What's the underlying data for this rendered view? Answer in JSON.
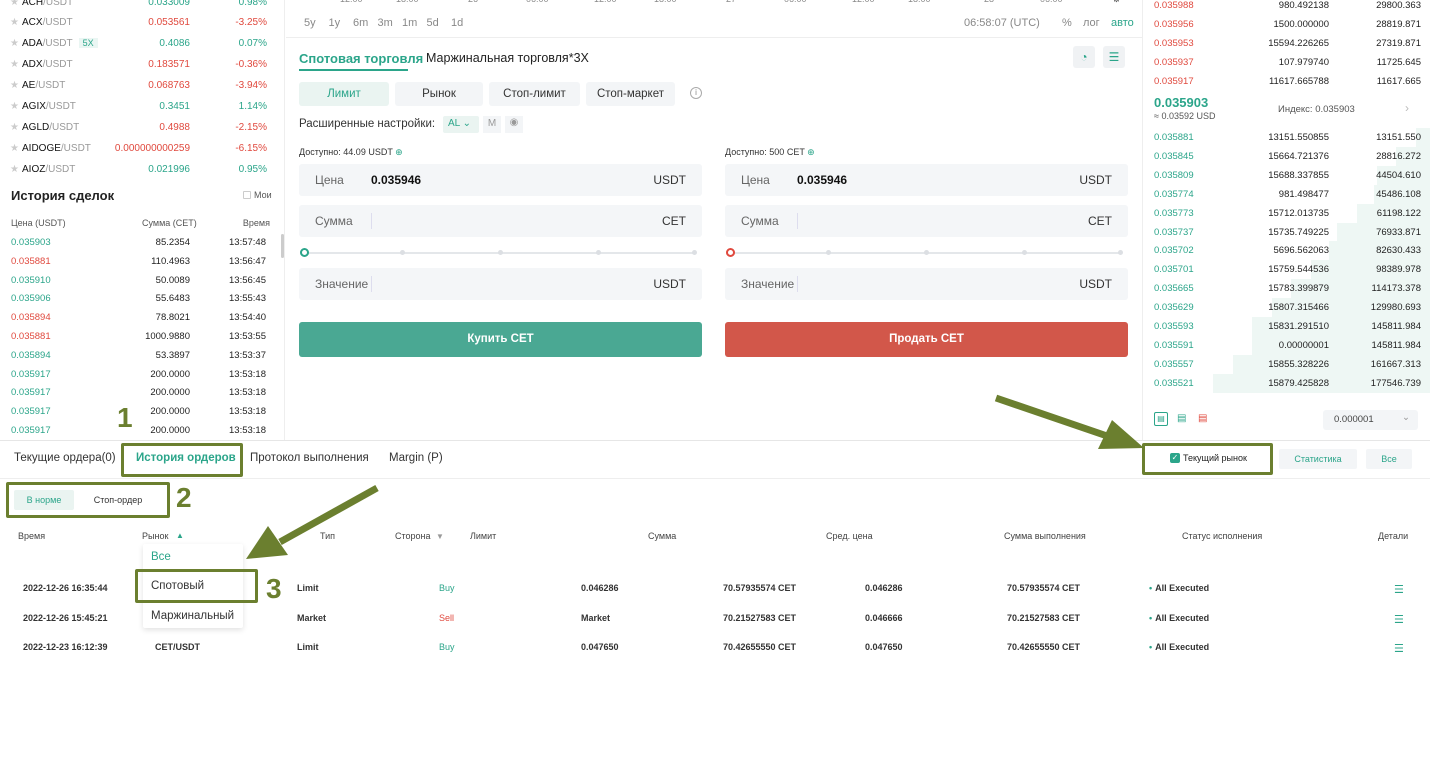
{
  "markets": [
    {
      "sym": "ACH",
      "quote": "/USDT",
      "price": "0.033009",
      "change": "0.98%",
      "dir": "up"
    },
    {
      "sym": "ACX",
      "quote": "/USDT",
      "price": "0.053561",
      "change": "-3.25%",
      "dir": "down"
    },
    {
      "sym": "ADA",
      "quote": "/USDT",
      "lev": "5X",
      "price": "0.4086",
      "change": "0.07%",
      "dir": "up"
    },
    {
      "sym": "ADX",
      "quote": "/USDT",
      "price": "0.183571",
      "change": "-0.36%",
      "dir": "down"
    },
    {
      "sym": "AE",
      "quote": "/USDT",
      "price": "0.068763",
      "change": "-3.94%",
      "dir": "down"
    },
    {
      "sym": "AGIX",
      "quote": "/USDT",
      "price": "0.3451",
      "change": "1.14%",
      "dir": "up"
    },
    {
      "sym": "AGLD",
      "quote": "/USDT",
      "price": "0.4988",
      "change": "-2.15%",
      "dir": "down"
    },
    {
      "sym": "AIDOGE",
      "quote": "/USDT",
      "price": "0.000000000259",
      "change": "-6.15%",
      "dir": "down"
    },
    {
      "sym": "AIOZ",
      "quote": "/USDT",
      "price": "0.021996",
      "change": "0.95%",
      "dir": "up"
    }
  ],
  "trade_history": {
    "title": "История сделок",
    "mine_label": "Мои",
    "headers": {
      "price": "Цена (USDT)",
      "amount": "Сумма (CET)",
      "time": "Время"
    },
    "rows": [
      {
        "price": "0.035903",
        "amount": "85.2354",
        "time": "13:57:48",
        "dir": "up"
      },
      {
        "price": "0.035881",
        "amount": "110.4963",
        "time": "13:56:47",
        "dir": "down"
      },
      {
        "price": "0.035910",
        "amount": "50.0089",
        "time": "13:56:45",
        "dir": "up"
      },
      {
        "price": "0.035906",
        "amount": "55.6483",
        "time": "13:55:43",
        "dir": "up"
      },
      {
        "price": "0.035894",
        "amount": "78.8021",
        "time": "13:54:40",
        "dir": "down"
      },
      {
        "price": "0.035881",
        "amount": "1000.9880",
        "time": "13:53:55",
        "dir": "down"
      },
      {
        "price": "0.035894",
        "amount": "53.3897",
        "time": "13:53:37",
        "dir": "up"
      },
      {
        "price": "0.035917",
        "amount": "200.0000",
        "time": "13:53:18",
        "dir": "up"
      },
      {
        "price": "0.035917",
        "amount": "200.0000",
        "time": "13:53:18",
        "dir": "up"
      },
      {
        "price": "0.035917",
        "amount": "200.0000",
        "time": "13:53:18",
        "dir": "up"
      },
      {
        "price": "0.035917",
        "amount": "200.0000",
        "time": "13:53:18",
        "dir": "up"
      }
    ]
  },
  "chart_strip": {
    "axis_labels": [
      "12:00",
      "18:00",
      "26",
      "06:00",
      "12:00",
      "18:00",
      "27",
      "06:00",
      "12:00",
      "18:00",
      "28",
      "06:00"
    ],
    "ranges": [
      "5y",
      "1y",
      "6m",
      "3m",
      "1m",
      "5d",
      "1d"
    ],
    "clock": "06:58:07 (UTC)",
    "pct": "%",
    "log": "лог",
    "auto": "авто"
  },
  "order_form": {
    "tab_spot": "Спотовая торговля",
    "tab_margin": "Маржинальная торговля*3X",
    "types": [
      "Лимит",
      "Рынок",
      "Стоп-лимит",
      "Стоп-маркет"
    ],
    "advanced_label": "Расширенные настройки:",
    "adv_al": "AL",
    "adv_m": "M",
    "buy": {
      "avail_label": "Доступно:",
      "avail_value": "44.09 USDT",
      "price_label": "Цена",
      "price_value": "0.035946",
      "price_unit": "USDT",
      "amount_label": "Сумма",
      "amount_unit": "CET",
      "value_label": "Значение",
      "value_unit": "USDT",
      "button": "Купить CET"
    },
    "sell": {
      "avail_label": "Доступно:",
      "avail_value": "500 CET",
      "price_label": "Цена",
      "price_value": "0.035946",
      "price_unit": "USDT",
      "amount_label": "Сумма",
      "amount_unit": "CET",
      "value_label": "Значение",
      "value_unit": "USDT",
      "button": "Продать CET"
    }
  },
  "orderbook": {
    "asks": [
      {
        "price": "0.035988",
        "amount": "980.492138",
        "total": "29800.363"
      },
      {
        "price": "0.035956",
        "amount": "1500.000000",
        "total": "28819.871"
      },
      {
        "price": "0.035953",
        "amount": "15594.226265",
        "total": "27319.871"
      },
      {
        "price": "0.035937",
        "amount": "107.979740",
        "total": "11725.645"
      },
      {
        "price": "0.035917",
        "amount": "11617.665788",
        "total": "11617.665"
      }
    ],
    "last_price": "0.035903",
    "last_usd": "≈ 0.03592 USD",
    "index": "Индекс: 0.035903",
    "bids": [
      {
        "price": "0.035881",
        "amount": "13151.550855",
        "total": "13151.550",
        "depth": 0.07
      },
      {
        "price": "0.035845",
        "amount": "15664.721376",
        "total": "28816.272",
        "depth": 0.16
      },
      {
        "price": "0.035809",
        "amount": "15688.337855",
        "total": "44504.610",
        "depth": 0.25
      },
      {
        "price": "0.035774",
        "amount": "981.498477",
        "total": "45486.108",
        "depth": 0.26
      },
      {
        "price": "0.035773",
        "amount": "15712.013735",
        "total": "61198.122",
        "depth": 0.34
      },
      {
        "price": "0.035737",
        "amount": "15735.749225",
        "total": "76933.871",
        "depth": 0.43
      },
      {
        "price": "0.035702",
        "amount": "5696.562063",
        "total": "82630.433",
        "depth": 0.47
      },
      {
        "price": "0.035701",
        "amount": "15759.544536",
        "total": "98389.978",
        "depth": 0.55
      },
      {
        "price": "0.035665",
        "amount": "15783.399879",
        "total": "114173.378",
        "depth": 0.64
      },
      {
        "price": "0.035629",
        "amount": "15807.315466",
        "total": "129980.693",
        "depth": 0.73
      },
      {
        "price": "0.035593",
        "amount": "15831.291510",
        "total": "145811.984",
        "depth": 0.82
      },
      {
        "price": "0.035591",
        "amount": "0.00000001",
        "total": "145811.984",
        "depth": 0.82
      },
      {
        "price": "0.035557",
        "amount": "15855.328226",
        "total": "161667.313",
        "depth": 0.91
      },
      {
        "price": "0.035521",
        "amount": "15879.425828",
        "total": "177546.739",
        "depth": 1.0
      }
    ],
    "precision": "0.000001"
  },
  "bottom": {
    "tabs": [
      "Текущие ордера(0)",
      "История ордеров",
      "Протокол выполнения",
      "Margin (P)"
    ],
    "current_market": "Текущий рынок",
    "stats": "Статистика",
    "all": "Все",
    "subtabs": [
      "В норме",
      "Стоп-ордер"
    ],
    "headers": [
      "Время",
      "Рынок",
      "Тип",
      "Сторона",
      "Лимит",
      "Сумма",
      "Сред. цена",
      "Сумма выполнения",
      "Статус исполнения",
      "Детали"
    ],
    "dropdown": [
      "Все",
      "Спотовый",
      "Маржинальный"
    ],
    "rows": [
      {
        "time": "2022-12-26 16:35:44",
        "market": "CET/USDT",
        "type": "Limit",
        "side": "Buy",
        "limit": "0.046286",
        "amount": "70.57935574 CET",
        "avg": "0.046286",
        "filled": "70.57935574 CET",
        "status": "All Executed"
      },
      {
        "time": "2022-12-26 15:45:21",
        "market": "CET/USDT",
        "type": "Market",
        "side": "Sell",
        "limit": "Market",
        "amount": "70.21527583 CET",
        "avg": "0.046666",
        "filled": "70.21527583 CET",
        "status": "All Executed"
      },
      {
        "time": "2022-12-23 16:12:39",
        "market": "CET/USDT",
        "type": "Limit",
        "side": "Buy",
        "limit": "0.047650",
        "amount": "70.42655550 CET",
        "avg": "0.047650",
        "filled": "70.42655550 CET",
        "status": "All Executed"
      }
    ]
  },
  "annotations": [
    "1",
    "2",
    "3"
  ],
  "colors": {
    "buy": "#4aa893",
    "sell": "#d2574a",
    "annotation": "#6b7f2f",
    "up": "#2ba58a",
    "down": "#e0493e"
  }
}
